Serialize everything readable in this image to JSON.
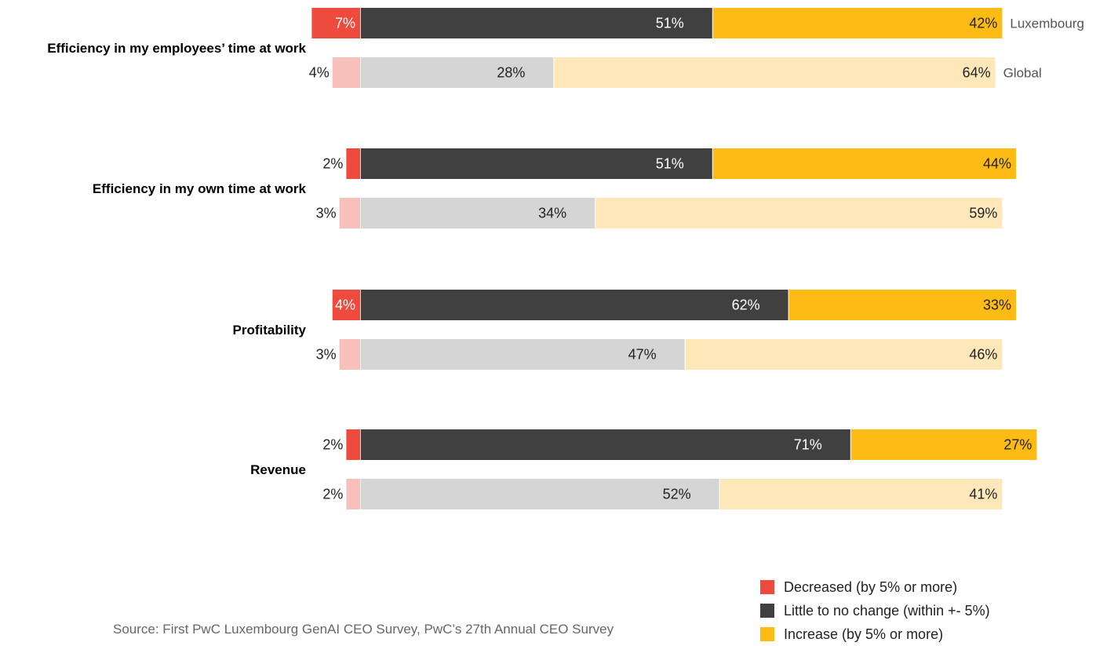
{
  "chart_data": {
    "type": "bar",
    "orientation": "horizontal",
    "stacked": true,
    "categories": [
      "Efficiency in my employees’ time at work",
      "Efficiency in my own time at work",
      "Profitability",
      "Revenue"
    ],
    "groups": [
      "Luxembourg",
      "Global"
    ],
    "series": [
      {
        "name": "Decreased (by 5% or more)",
        "color_luxembourg": "#EE4A3E",
        "color_global": "#F8C0BA",
        "luxembourg": [
          7,
          2,
          4,
          2
        ],
        "global": [
          4,
          3,
          3,
          2
        ]
      },
      {
        "name": "Little to no change (within +- 5%)",
        "color_luxembourg": "#404041",
        "color_global": "#D5D5D5",
        "luxembourg": [
          51,
          51,
          62,
          71
        ],
        "global": [
          28,
          34,
          47,
          52
        ]
      },
      {
        "name": "Increase (by 5% or more)",
        "color_luxembourg": "#FDBB13",
        "color_global": "#FEE8B9",
        "luxembourg": [
          42,
          44,
          33,
          27
        ],
        "global": [
          64,
          59,
          46,
          41
        ]
      }
    ],
    "value_suffix": "%",
    "legend_position": "bottom-right",
    "grid": false
  },
  "source": "Source: First PwC Luxembourg GenAI CEO Survey, PwC’s 27th Annual CEO Survey"
}
